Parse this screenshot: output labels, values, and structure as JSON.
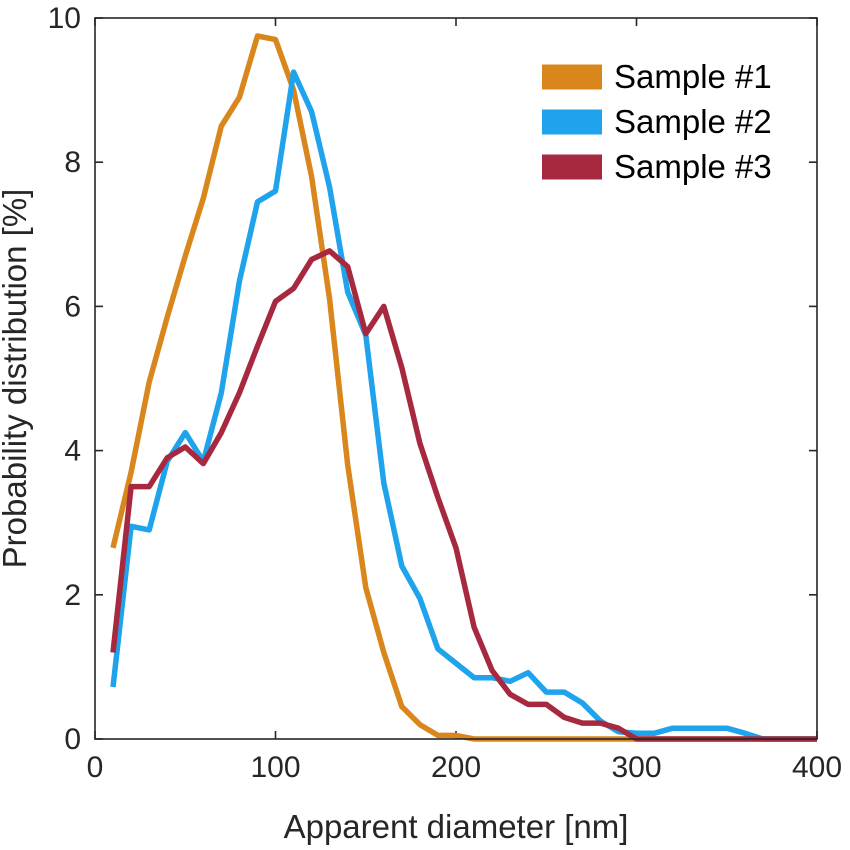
{
  "chart_data": {
    "type": "line",
    "title": "",
    "xlabel": "Apparent diameter [nm]",
    "ylabel": "Probability distribution [%]",
    "xlim": [
      0,
      400
    ],
    "ylim": [
      0,
      10
    ],
    "xticks": [
      0,
      100,
      200,
      300,
      400
    ],
    "yticks": [
      0,
      2,
      4,
      6,
      8,
      10
    ],
    "grid": false,
    "legend_position": "top-right",
    "series": [
      {
        "name": "Sample #1",
        "color": "#D9861C",
        "x": [
          10,
          20,
          30,
          40,
          50,
          60,
          70,
          80,
          90,
          100,
          110,
          120,
          130,
          140,
          150,
          160,
          170,
          180,
          190,
          200,
          210,
          220,
          230,
          240,
          250,
          260,
          270,
          280,
          290,
          300,
          310,
          320,
          330,
          340,
          350,
          360,
          370,
          380,
          390,
          400
        ],
        "y": [
          2.65,
          3.7,
          4.95,
          5.85,
          6.7,
          7.5,
          8.5,
          8.9,
          9.75,
          9.7,
          9.0,
          7.8,
          6.1,
          3.8,
          2.1,
          1.2,
          0.45,
          0.2,
          0.05,
          0.05,
          0.0,
          0.0,
          0.0,
          0.0,
          0.0,
          0.0,
          0.0,
          0.0,
          0.0,
          0.0,
          0.0,
          0.0,
          0.0,
          0.0,
          0.0,
          0.0,
          0.0,
          0.0,
          0.0,
          0.0
        ]
      },
      {
        "name": "Sample #2",
        "color": "#1FA3EC",
        "x": [
          10,
          20,
          30,
          40,
          50,
          60,
          70,
          80,
          90,
          100,
          110,
          120,
          130,
          140,
          150,
          160,
          170,
          180,
          190,
          200,
          210,
          220,
          230,
          240,
          250,
          260,
          270,
          280,
          290,
          300,
          310,
          320,
          330,
          340,
          350,
          360,
          370,
          380,
          390,
          400
        ],
        "y": [
          0.72,
          2.95,
          2.9,
          3.85,
          4.25,
          3.85,
          4.8,
          6.35,
          7.45,
          7.6,
          9.25,
          8.7,
          7.65,
          6.2,
          5.6,
          3.55,
          2.4,
          1.95,
          1.25,
          1.05,
          0.85,
          0.85,
          0.8,
          0.92,
          0.65,
          0.65,
          0.5,
          0.25,
          0.1,
          0.08,
          0.08,
          0.15,
          0.15,
          0.15,
          0.15,
          0.08,
          0.0,
          0.0,
          0.0,
          0.0
        ]
      },
      {
        "name": "Sample #3",
        "color": "#A7293F",
        "x": [
          10,
          20,
          30,
          40,
          50,
          60,
          70,
          80,
          90,
          100,
          110,
          120,
          130,
          140,
          150,
          160,
          170,
          180,
          190,
          200,
          210,
          220,
          230,
          240,
          250,
          260,
          270,
          280,
          290,
          300,
          310,
          320,
          330,
          340,
          350,
          360,
          370,
          380,
          390,
          400
        ],
        "y": [
          1.2,
          3.5,
          3.5,
          3.9,
          4.05,
          3.82,
          4.25,
          4.8,
          5.45,
          6.07,
          6.25,
          6.65,
          6.77,
          6.55,
          5.62,
          6.0,
          5.15,
          4.1,
          3.35,
          2.65,
          1.55,
          0.95,
          0.62,
          0.48,
          0.48,
          0.3,
          0.22,
          0.22,
          0.15,
          0.0,
          0.0,
          0.0,
          0.0,
          0.0,
          0.0,
          0.0,
          0.0,
          0.0,
          0.0,
          0.0
        ]
      }
    ]
  }
}
